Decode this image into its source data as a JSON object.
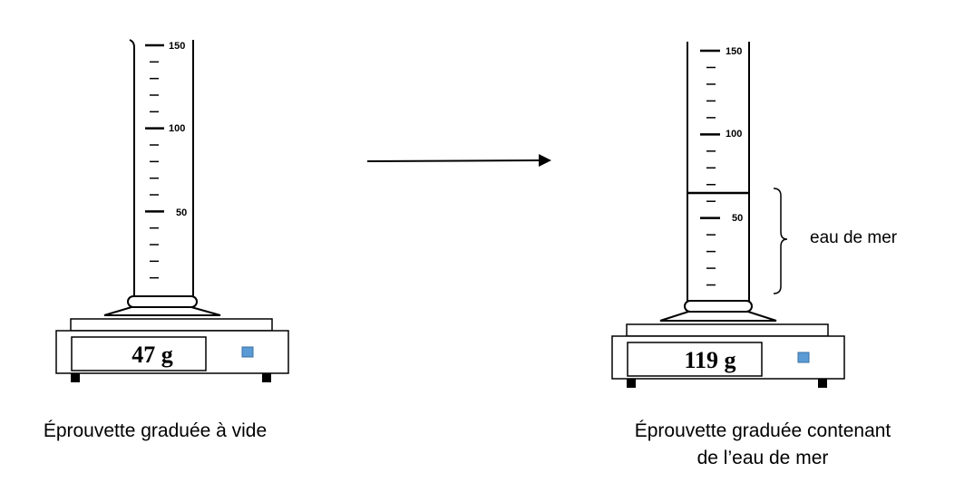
{
  "left_setup": {
    "cylinder": {
      "tick_labels": [
        "150",
        "100",
        "50"
      ]
    },
    "scale": {
      "reading": "47 g"
    },
    "caption": "Éprouvette graduée à vide"
  },
  "right_setup": {
    "cylinder": {
      "tick_labels": [
        "150",
        "100",
        "50"
      ],
      "liquid_level_ml": 65
    },
    "scale": {
      "reading": "119 g"
    },
    "brace_label": "eau de mer",
    "caption_line1": "Éprouvette graduée contenant",
    "caption_line2": "de l’eau de mer"
  },
  "colors": {
    "scale_button": "#5b9bd5",
    "ink": "#000000"
  }
}
